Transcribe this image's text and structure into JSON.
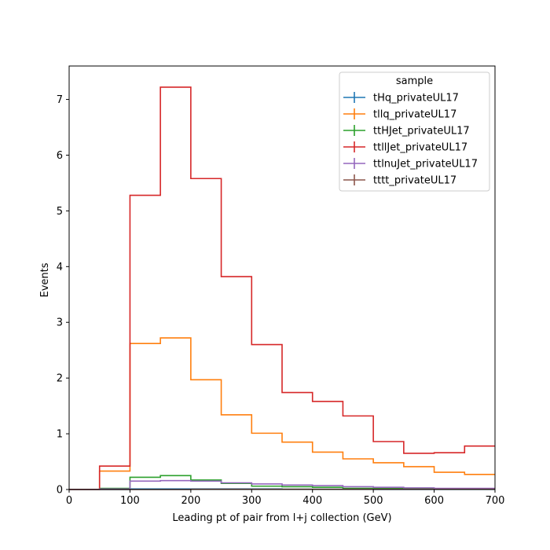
{
  "chart_data": {
    "type": "histogram-step",
    "xlabel": "Leading pt of pair from l+j collection (GeV)",
    "ylabel": "Events",
    "xlim": [
      0,
      700
    ],
    "ylim": [
      0,
      7.6
    ],
    "x_ticks": [
      0,
      100,
      200,
      300,
      400,
      500,
      600,
      700
    ],
    "y_ticks": [
      0,
      1,
      2,
      3,
      4,
      5,
      6,
      7
    ],
    "bin_edges": [
      0,
      50,
      100,
      150,
      200,
      250,
      300,
      350,
      400,
      450,
      500,
      550,
      600,
      650,
      700
    ],
    "legend": {
      "title": "sample",
      "position": "top-right"
    },
    "series": [
      {
        "name": "tHq_privateUL17",
        "color": "#1f77b4",
        "values": [
          0,
          0.0,
          0.01,
          0.01,
          0.01,
          0.01,
          0.01,
          0.005,
          0.005,
          0.005,
          0.003,
          0.003,
          0.002,
          0.002
        ]
      },
      {
        "name": "tllq_privateUL17",
        "color": "#ff7f0e",
        "values": [
          0,
          0.33,
          2.62,
          2.72,
          1.97,
          1.34,
          1.01,
          0.85,
          0.67,
          0.55,
          0.48,
          0.41,
          0.31,
          0.27
        ]
      },
      {
        "name": "ttHJet_privateUL17",
        "color": "#2ca02c",
        "values": [
          0,
          0.02,
          0.22,
          0.25,
          0.17,
          0.11,
          0.06,
          0.05,
          0.04,
          0.02,
          0.02,
          0.01,
          0.01,
          0.01
        ]
      },
      {
        "name": "ttllJet_privateUL17",
        "color": "#d62728",
        "values": [
          0,
          0.42,
          5.28,
          7.22,
          5.58,
          3.82,
          2.6,
          1.74,
          1.58,
          1.32,
          0.86,
          0.65,
          0.66,
          0.78
        ]
      },
      {
        "name": "ttlnuJet_privateUL17",
        "color": "#9467bd",
        "values": [
          0,
          0.01,
          0.15,
          0.16,
          0.15,
          0.12,
          0.1,
          0.08,
          0.07,
          0.05,
          0.04,
          0.03,
          0.02,
          0.02
        ]
      },
      {
        "name": "tttt_privateUL17",
        "color": "#8c564b",
        "values": [
          0,
          0.0,
          0.0,
          0.0,
          0.005,
          0.005,
          0.005,
          0.005,
          0.005,
          0.005,
          0.005,
          0.005,
          0.005,
          0.005
        ]
      }
    ]
  }
}
